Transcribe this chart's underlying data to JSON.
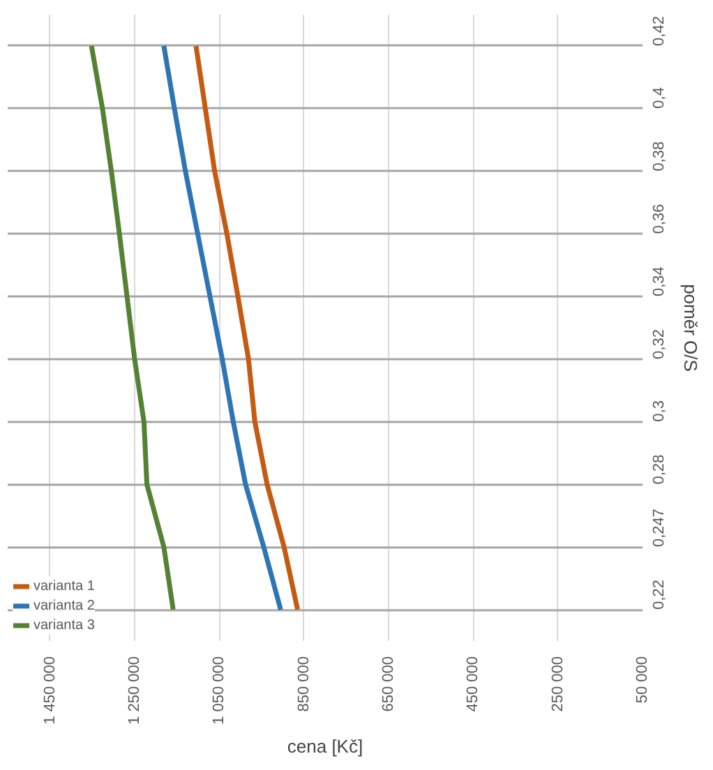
{
  "chart_data": {
    "type": "line",
    "orientation": "horizontal",
    "xlabel": "cena [Kč]",
    "ylabel": "poměr O/S",
    "categories": [
      "0,42",
      "0,4",
      "0,38",
      "0,36",
      "0,34",
      "0,32",
      "0,3",
      "0,28",
      "0,247",
      "0,22"
    ],
    "series": [
      {
        "name": "varianta 1",
        "color": "#c55a11",
        "values": [
          1105000,
          1083000,
          1061000,
          1032000,
          1006000,
          981000,
          966000,
          937000,
          897000,
          865000
        ]
      },
      {
        "name": "varianta 2",
        "color": "#2e75b6",
        "values": [
          1181000,
          1156000,
          1130000,
          1101000,
          1072000,
          1043000,
          1017000,
          988000,
          945000,
          905000
        ]
      },
      {
        "name": "varianta 3",
        "color": "#548235",
        "values": [
          1352000,
          1326000,
          1305000,
          1286000,
          1268000,
          1250000,
          1228000,
          1221000,
          1181000,
          1159000
        ]
      }
    ],
    "xlim": [
      1550000,
      50000
    ],
    "xticks": [
      {
        "value": 1450000,
        "label": "1 450 000"
      },
      {
        "value": 1250000,
        "label": "1 250 000"
      },
      {
        "value": 1050000,
        "label": "1 050 000"
      },
      {
        "value": 850000,
        "label": "850 000"
      },
      {
        "value": 650000,
        "label": "650 000"
      },
      {
        "value": 450000,
        "label": "450 000"
      },
      {
        "value": 250000,
        "label": "250 000"
      },
      {
        "value": 50000,
        "label": "50 000"
      }
    ],
    "grid": true,
    "legend": "bottom left",
    "marker": "none",
    "line_style": "solid"
  }
}
